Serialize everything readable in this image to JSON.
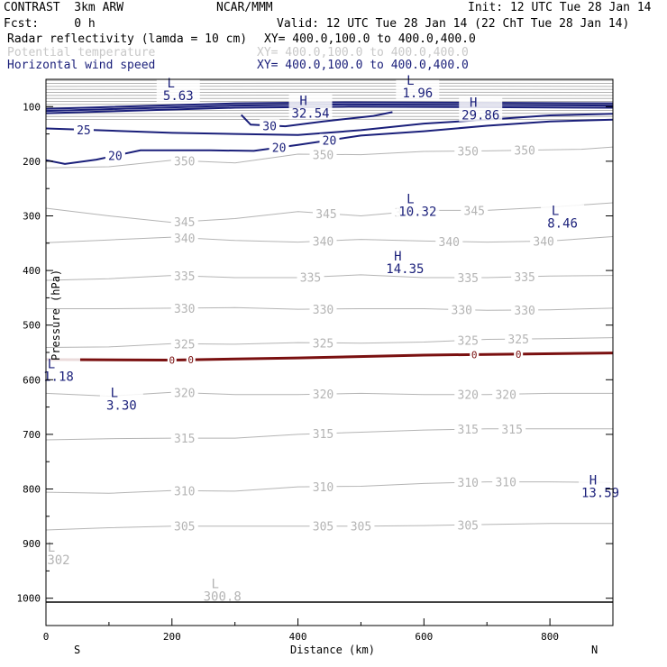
{
  "header": {
    "model": "CONTRAST  3km ARW",
    "center": "NCAR/MMM",
    "init": "Init: 12 UTC Tue 28 Jan 14",
    "fcst": "Fcst:     0 h",
    "valid": "Valid: 12 UTC Tue 28 Jan 14 (22 ChT Tue 28 Jan 14)",
    "line1_field": "Radar reflectivity (lamda = 10 cm)",
    "line1_xy": "XY= 400.0,100.0 to 400.0,400.0",
    "line2_field": "Potential temperature",
    "line2_xy": "XY= 400.0,100.0 to 400.0,400.0",
    "line3_field": "Horizontal wind speed",
    "line3_xy": "XY= 400.0,100.0 to 400.0,400.0"
  },
  "colors": {
    "theta": "#b4b4b4",
    "wind": "#1a1f7a",
    "reflectivity": "#7a1010",
    "axis": "#000000",
    "headerLight": "#c8c8c8"
  },
  "chart_data": {
    "type": "cross-section contour",
    "xlabel": "Distance (km)",
    "ylabel": "Pressure (hPa)",
    "xlim": [
      0,
      900
    ],
    "ylim": [
      1050,
      50
    ],
    "xticks": [
      0,
      200,
      400,
      600,
      800
    ],
    "yticks": [
      100,
      200,
      300,
      400,
      500,
      600,
      700,
      800,
      900,
      1000
    ],
    "endpoint_labels": {
      "left": "S",
      "right": "N"
    },
    "theta_contours": [
      {
        "level": 350,
        "label": "350",
        "points": [
          [
            0,
            212
          ],
          [
            100,
            210
          ],
          [
            200,
            198
          ],
          [
            300,
            203
          ],
          [
            400,
            187
          ],
          [
            500,
            188
          ],
          [
            600,
            182
          ],
          [
            700,
            181
          ],
          [
            850,
            178
          ],
          [
            900,
            174
          ]
        ],
        "label_x": [
          220,
          440,
          670,
          760
        ]
      },
      {
        "level": 345,
        "label": "345",
        "points": [
          [
            0,
            286
          ],
          [
            100,
            300
          ],
          [
            200,
            312
          ],
          [
            300,
            305
          ],
          [
            400,
            292
          ],
          [
            500,
            300
          ],
          [
            600,
            290
          ],
          [
            700,
            290
          ],
          [
            800,
            284
          ],
          [
            900,
            276
          ]
        ],
        "label_x": [
          220,
          445,
          570,
          680
        ]
      },
      {
        "level": 340,
        "label": "340",
        "points": [
          [
            0,
            349
          ],
          [
            100,
            344
          ],
          [
            200,
            339
          ],
          [
            300,
            345
          ],
          [
            400,
            348
          ],
          [
            500,
            343
          ],
          [
            600,
            346
          ],
          [
            700,
            348
          ],
          [
            800,
            346
          ],
          [
            900,
            338
          ]
        ],
        "label_x": [
          220,
          440,
          640,
          790
        ]
      },
      {
        "level": 335,
        "label": "335",
        "points": [
          [
            0,
            418
          ],
          [
            100,
            415
          ],
          [
            200,
            409
          ],
          [
            300,
            413
          ],
          [
            400,
            413
          ],
          [
            500,
            408
          ],
          [
            600,
            413
          ],
          [
            700,
            413
          ],
          [
            800,
            410
          ],
          [
            900,
            409
          ]
        ],
        "label_x": [
          220,
          420,
          670,
          760
        ]
      },
      {
        "level": 330,
        "label": "330",
        "points": [
          [
            0,
            470
          ],
          [
            100,
            470
          ],
          [
            200,
            469
          ],
          [
            300,
            468
          ],
          [
            400,
            471
          ],
          [
            500,
            470
          ],
          [
            600,
            470
          ],
          [
            700,
            473
          ],
          [
            800,
            472
          ],
          [
            900,
            469
          ]
        ],
        "label_x": [
          220,
          440,
          660,
          760
        ]
      },
      {
        "level": 325,
        "label": "325",
        "points": [
          [
            0,
            541
          ],
          [
            100,
            540
          ],
          [
            200,
            534
          ],
          [
            300,
            535
          ],
          [
            400,
            532
          ],
          [
            500,
            533
          ],
          [
            600,
            531
          ],
          [
            700,
            526
          ],
          [
            800,
            525
          ],
          [
            900,
            523
          ]
        ],
        "label_x": [
          220,
          440,
          670,
          750
        ]
      },
      {
        "level": 320,
        "label": "320",
        "points": [
          [
            0,
            625
          ],
          [
            100,
            630
          ],
          [
            200,
            623
          ],
          [
            300,
            627
          ],
          [
            400,
            627
          ],
          [
            500,
            625
          ],
          [
            600,
            627
          ],
          [
            700,
            627
          ],
          [
            800,
            625
          ],
          [
            900,
            625
          ]
        ],
        "label_x": [
          220,
          440,
          670,
          730
        ]
      },
      {
        "level": 315,
        "label": "315",
        "points": [
          [
            0,
            710
          ],
          [
            100,
            708
          ],
          [
            200,
            707
          ],
          [
            300,
            707
          ],
          [
            400,
            700
          ],
          [
            500,
            696
          ],
          [
            600,
            692
          ],
          [
            700,
            690
          ],
          [
            800,
            690
          ],
          [
            900,
            690
          ]
        ],
        "label_x": [
          220,
          440,
          670,
          740
        ]
      },
      {
        "level": 310,
        "label": "310",
        "points": [
          [
            0,
            806
          ],
          [
            100,
            808
          ],
          [
            200,
            803
          ],
          [
            300,
            804
          ],
          [
            400,
            796
          ],
          [
            500,
            795
          ],
          [
            600,
            790
          ],
          [
            700,
            787
          ],
          [
            800,
            787
          ],
          [
            900,
            788
          ]
        ],
        "label_x": [
          220,
          440,
          670,
          730
        ]
      },
      {
        "level": 305,
        "label": "305",
        "points": [
          [
            0,
            875
          ],
          [
            100,
            871
          ],
          [
            200,
            868
          ],
          [
            300,
            868
          ],
          [
            400,
            868
          ],
          [
            500,
            868
          ],
          [
            600,
            867
          ],
          [
            700,
            865
          ],
          [
            800,
            863
          ],
          [
            900,
            863
          ]
        ],
        "label_x": [
          220,
          440,
          500,
          670
        ]
      }
    ],
    "upper_theta_band_note": "dense potential temperature isolines between 50 and 130 hPa",
    "wind_contours": [
      {
        "level": 30,
        "label": "30",
        "points": [
          [
            310,
            115
          ],
          [
            325,
            133
          ],
          [
            380,
            136
          ],
          [
            440,
            127
          ],
          [
            520,
            117
          ],
          [
            550,
            110
          ]
        ],
        "label_x": [
          355
        ]
      },
      {
        "level": 25,
        "label": "25",
        "points": [
          [
            0,
            140
          ],
          [
            80,
            143
          ],
          [
            200,
            148
          ],
          [
            300,
            150
          ],
          [
            400,
            152
          ],
          [
            500,
            143
          ],
          [
            600,
            131
          ],
          [
            700,
            124
          ],
          [
            800,
            116
          ],
          [
            900,
            113
          ]
        ],
        "label_x": [
          60
        ]
      },
      {
        "level": 20,
        "label": "20",
        "points": [
          [
            0,
            198
          ],
          [
            30,
            205
          ],
          [
            80,
            197
          ],
          [
            150,
            180
          ],
          [
            260,
            180
          ],
          [
            330,
            181
          ],
          [
            400,
            170
          ],
          [
            500,
            153
          ],
          [
            600,
            145
          ],
          [
            700,
            135
          ],
          [
            800,
            127
          ],
          [
            900,
            124
          ]
        ],
        "label_x": [
          110,
          370,
          450
        ]
      }
    ],
    "reflectivity_contours": [
      {
        "level": 0,
        "label": "0",
        "points": [
          [
            0,
            563
          ],
          [
            200,
            564
          ],
          [
            400,
            560
          ],
          [
            600,
            555
          ],
          [
            900,
            551
          ]
        ],
        "label_x": [
          200,
          230,
          680,
          750
        ]
      }
    ],
    "extrema": [
      {
        "kind": "L",
        "value": "5.63",
        "x": 210,
        "p": 68,
        "field": "wind"
      },
      {
        "kind": "L",
        "value": "1.96",
        "x": 590,
        "p": 63,
        "field": "wind"
      },
      {
        "kind": "H",
        "value": "32.54",
        "x": 420,
        "p": 100,
        "field": "wind"
      },
      {
        "kind": "H",
        "value": "29.86",
        "x": 690,
        "p": 104,
        "field": "wind"
      },
      {
        "kind": "L",
        "value": "10.32",
        "x": 590,
        "p": 280,
        "field": "wind"
      },
      {
        "kind": "L",
        "value": "8.46",
        "x": 820,
        "p": 302,
        "field": "wind"
      },
      {
        "kind": "H",
        "value": "14.35",
        "x": 570,
        "p": 385,
        "field": "wind"
      },
      {
        "kind": "L",
        "value": "1.18",
        "x": 20,
        "p": 582,
        "field": "wind"
      },
      {
        "kind": "L",
        "value": "3.30",
        "x": 120,
        "p": 635,
        "field": "wind"
      },
      {
        "kind": "H",
        "value": "13.59",
        "x": 880,
        "p": 795,
        "field": "wind"
      },
      {
        "kind": "L",
        "value": "302",
        "x": 20,
        "p": 918,
        "field": "theta"
      },
      {
        "kind": "L",
        "value": "300.8",
        "x": 280,
        "p": 985,
        "field": "theta"
      }
    ]
  }
}
